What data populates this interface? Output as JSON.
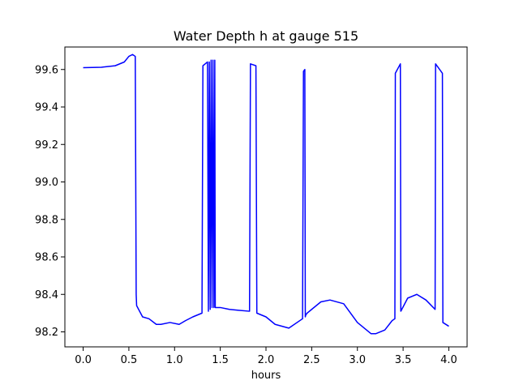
{
  "chart_data": {
    "type": "line",
    "title": "Water Depth h at gauge 515",
    "xlabel": "hours",
    "ylabel": "",
    "xlim": [
      -0.2,
      4.2
    ],
    "ylim": [
      98.12,
      99.72
    ],
    "xticks": [
      0.0,
      0.5,
      1.0,
      1.5,
      2.0,
      2.5,
      3.0,
      3.5,
      4.0
    ],
    "xtick_labels": [
      "0.0",
      "0.5",
      "1.0",
      "1.5",
      "2.0",
      "2.5",
      "3.0",
      "3.5",
      "4.0"
    ],
    "yticks": [
      98.2,
      98.4,
      98.6,
      98.8,
      99.0,
      99.2,
      99.4,
      99.6
    ],
    "ytick_labels": [
      "98.2",
      "98.4",
      "98.6",
      "98.8",
      "99.0",
      "99.2",
      "99.4",
      "99.6"
    ],
    "grid": false,
    "series": [
      {
        "color": "#0000ff",
        "x": [
          0.0,
          0.2,
          0.35,
          0.45,
          0.5,
          0.54,
          0.57,
          0.58,
          0.585,
          0.65,
          0.72,
          0.8,
          0.85,
          0.95,
          1.05,
          1.12,
          1.2,
          1.3,
          1.31,
          1.36,
          1.37,
          1.38,
          1.39,
          1.4,
          1.41,
          1.42,
          1.43,
          1.44,
          1.445,
          1.5,
          1.6,
          1.7,
          1.82,
          1.83,
          1.89,
          1.9,
          2.0,
          2.1,
          2.25,
          2.4,
          2.41,
          2.425,
          2.43,
          2.435,
          2.45,
          2.5,
          2.6,
          2.7,
          2.85,
          3.0,
          3.15,
          3.2,
          3.3,
          3.38,
          3.41,
          3.415,
          3.47,
          3.475,
          3.55,
          3.65,
          3.75,
          3.85,
          3.855,
          3.93,
          3.935,
          4.0
        ],
        "y": [
          99.61,
          99.612,
          99.62,
          99.64,
          99.67,
          99.68,
          99.67,
          98.4,
          98.34,
          98.28,
          98.27,
          98.24,
          98.24,
          98.25,
          98.24,
          98.26,
          98.28,
          98.3,
          99.62,
          99.64,
          98.31,
          99.64,
          98.32,
          99.65,
          98.33,
          99.65,
          98.33,
          99.65,
          98.33,
          98.33,
          98.32,
          98.315,
          98.31,
          99.63,
          99.62,
          98.3,
          98.28,
          98.24,
          98.22,
          98.27,
          99.59,
          99.6,
          98.28,
          98.29,
          98.3,
          98.32,
          98.36,
          98.37,
          98.35,
          98.25,
          98.19,
          98.19,
          98.21,
          98.26,
          98.27,
          99.58,
          99.63,
          98.31,
          98.38,
          98.4,
          98.37,
          98.32,
          99.63,
          99.58,
          98.25,
          98.23
        ]
      }
    ]
  }
}
